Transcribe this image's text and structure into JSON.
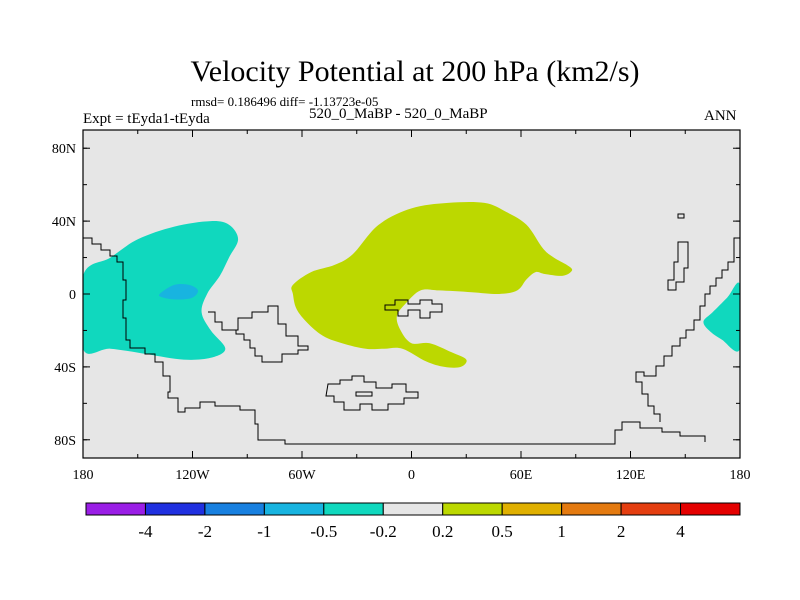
{
  "header": {
    "title": "Velocity Potential at 200 hPa (km2/s)",
    "stats": "rmsd= 0.186496 diff= -1.13723e-05",
    "experiment": "Expt = tEyda1-tEyda",
    "case": "520_0_MaBP - 520_0_MaBP",
    "season": "ANN"
  },
  "chart_data": {
    "type": "heatmap",
    "title": "Velocity Potential at 200 hPa (km2/s)",
    "xlabel": "",
    "ylabel": "",
    "xlim": [
      -180,
      180
    ],
    "ylim": [
      -90,
      90
    ],
    "x_ticks": [
      {
        "value": -180,
        "label": "180"
      },
      {
        "value": -120,
        "label": "120W"
      },
      {
        "value": -60,
        "label": "60W"
      },
      {
        "value": 0,
        "label": "0"
      },
      {
        "value": 60,
        "label": "60E"
      },
      {
        "value": 120,
        "label": "120E"
      },
      {
        "value": 180,
        "label": "180"
      }
    ],
    "y_ticks": [
      {
        "value": 80,
        "label": "80N"
      },
      {
        "value": 40,
        "label": "40N"
      },
      {
        "value": 0,
        "label": "0"
      },
      {
        "value": -40,
        "label": "40S"
      },
      {
        "value": -80,
        "label": "80S"
      }
    ],
    "background_bin": "-0.2 to 0.2",
    "regions": [
      {
        "name": "west-hemisphere-negative",
        "bin": "-0.5 to -0.2",
        "color": "#10d8be",
        "outline": [
          [
            -180,
            10
          ],
          [
            -165,
            20
          ],
          [
            -150,
            30
          ],
          [
            -130,
            37
          ],
          [
            -110,
            40
          ],
          [
            -100,
            38
          ],
          [
            -95,
            30
          ],
          [
            -100,
            20
          ],
          [
            -105,
            10
          ],
          [
            -112,
            0
          ],
          [
            -115,
            -10
          ],
          [
            -110,
            -20
          ],
          [
            -102,
            -30
          ],
          [
            -110,
            -35
          ],
          [
            -125,
            -36
          ],
          [
            -145,
            -33
          ],
          [
            -165,
            -30
          ],
          [
            -180,
            -30
          ]
        ]
      },
      {
        "name": "pacific-minimum",
        "bin": "-1 to -0.5",
        "color": "#18b4e0",
        "outline": [
          [
            -138,
            0
          ],
          [
            -130,
            5
          ],
          [
            -122,
            5
          ],
          [
            -117,
            2
          ],
          [
            -120,
            -2
          ],
          [
            -128,
            -3
          ],
          [
            -136,
            -2
          ]
        ]
      },
      {
        "name": "atlantic-africa-positive",
        "bin": "0.2 to 0.5",
        "color": "#bcd800",
        "outline": [
          [
            -65,
            5
          ],
          [
            -55,
            12
          ],
          [
            -42,
            16
          ],
          [
            -32,
            22
          ],
          [
            -18,
            38
          ],
          [
            0,
            47
          ],
          [
            20,
            50
          ],
          [
            40,
            50
          ],
          [
            52,
            45
          ],
          [
            63,
            38
          ],
          [
            72,
            25
          ],
          [
            78,
            20
          ],
          [
            85,
            16
          ],
          [
            88,
            13
          ],
          [
            83,
            10
          ],
          [
            73,
            11
          ],
          [
            68,
            12
          ],
          [
            63,
            8
          ],
          [
            58,
            2
          ],
          [
            48,
            0
          ],
          [
            33,
            1
          ],
          [
            15,
            2
          ],
          [
            5,
            2
          ],
          [
            -3,
            -5
          ],
          [
            -8,
            -12
          ],
          [
            -6,
            -20
          ],
          [
            0,
            -27
          ],
          [
            10,
            -27
          ],
          [
            22,
            -32
          ],
          [
            30,
            -36
          ],
          [
            27,
            -40
          ],
          [
            18,
            -40
          ],
          [
            8,
            -37
          ],
          [
            -5,
            -30
          ],
          [
            -15,
            -30
          ],
          [
            -25,
            -30
          ],
          [
            -38,
            -27
          ],
          [
            -50,
            -22
          ],
          [
            -62,
            -10
          ],
          [
            -65,
            0
          ]
        ]
      },
      {
        "name": "dateline-east-negative",
        "bin": "-0.5 to -0.2",
        "color": "#10d8be",
        "outline": [
          [
            180,
            5
          ],
          [
            173,
            -2
          ],
          [
            165,
            -10
          ],
          [
            160,
            -15
          ],
          [
            163,
            -20
          ],
          [
            170,
            -25
          ],
          [
            180,
            -30
          ]
        ]
      }
    ],
    "colorbar": {
      "bins": [
        "< -4",
        "-4 to -2",
        "-2 to -1",
        "-1 to -0.5",
        "-0.5 to -0.2",
        "-0.2 to 0.2",
        "0.2 to 0.5",
        "0.5 to 1",
        "1 to 2",
        "2 to 4",
        "> 4"
      ],
      "colors": [
        "#9a1ee6",
        "#2030e0",
        "#1880e0",
        "#18b4e0",
        "#10d8be",
        "#e6e6e6",
        "#bcd800",
        "#e0b000",
        "#e47a10",
        "#e43e10",
        "#e40000"
      ],
      "labels": [
        "-4",
        "-2",
        "-1",
        "-0.5",
        "-0.2",
        "0.2",
        "0.5",
        "1",
        "2",
        "4"
      ]
    }
  }
}
